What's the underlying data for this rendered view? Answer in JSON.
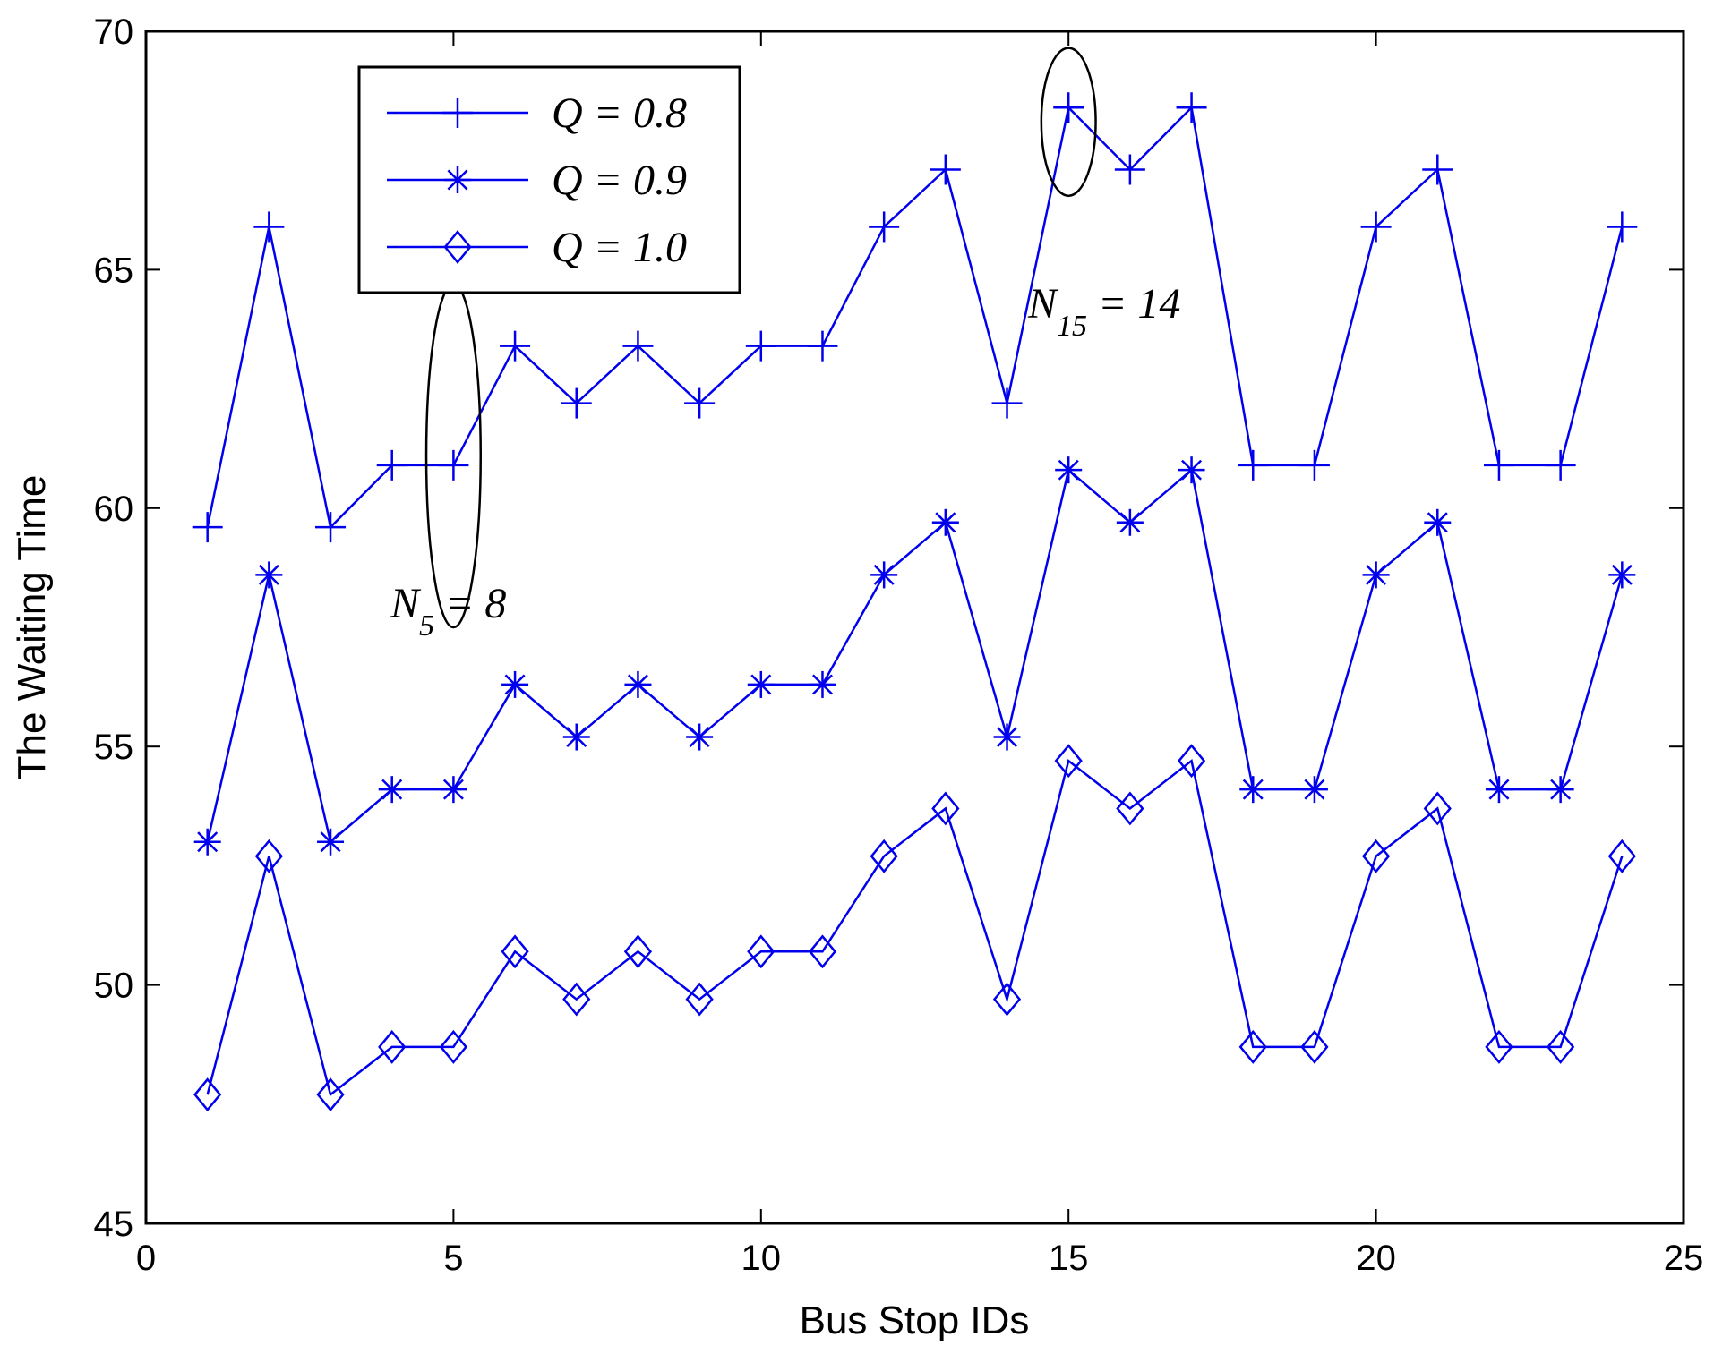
{
  "chart_data": {
    "type": "line",
    "title": "",
    "xlabel": "Bus Stop IDs",
    "ylabel": "The Waiting Time",
    "xlim": [
      0,
      25
    ],
    "ylim": [
      45,
      70
    ],
    "xticks": [
      0,
      5,
      10,
      15,
      20,
      25
    ],
    "yticks": [
      45,
      50,
      55,
      60,
      65,
      70
    ],
    "grid": false,
    "legend_position": "top-left",
    "line_color": "#0000ee",
    "x": [
      1,
      2,
      3,
      4,
      5,
      6,
      7,
      8,
      9,
      10,
      11,
      12,
      13,
      14,
      15,
      16,
      17,
      18,
      19,
      20,
      21,
      22,
      23,
      24
    ],
    "series": [
      {
        "name": "Q = 0.8",
        "marker": "plus",
        "values": [
          59.6,
          65.9,
          59.6,
          60.9,
          60.9,
          63.4,
          62.2,
          63.4,
          62.2,
          63.4,
          63.4,
          65.9,
          67.1,
          62.2,
          68.4,
          67.1,
          68.4,
          60.9,
          60.9,
          65.9,
          67.1,
          60.9,
          60.9,
          65.9
        ]
      },
      {
        "name": "Q = 0.9",
        "marker": "asterisk",
        "values": [
          53.0,
          58.6,
          53.0,
          54.1,
          54.1,
          56.3,
          55.2,
          56.3,
          55.2,
          56.3,
          56.3,
          58.6,
          59.7,
          55.2,
          60.8,
          59.7,
          60.8,
          54.1,
          54.1,
          58.6,
          59.7,
          54.1,
          54.1,
          58.6
        ]
      },
      {
        "name": "Q = 1.0",
        "marker": "diamond",
        "values": [
          47.7,
          52.7,
          47.7,
          48.7,
          48.7,
          50.7,
          49.7,
          50.7,
          49.7,
          50.7,
          50.7,
          52.7,
          53.7,
          49.7,
          54.7,
          53.7,
          54.7,
          48.7,
          48.7,
          52.7,
          53.7,
          48.7,
          48.7,
          52.7
        ]
      }
    ],
    "annotations": [
      {
        "label_main": "N",
        "label_sub": "5",
        "label_rest": " = 8",
        "circle_center": [
          5,
          61.1
        ],
        "circle_radius": [
          1.3,
          3.6
        ]
      },
      {
        "label_main": "N",
        "label_sub": "15",
        "label_rest": " = 14",
        "circle_center": [
          15,
          68.1
        ],
        "circle_radius": [
          1.3,
          1.55
        ]
      }
    ]
  }
}
